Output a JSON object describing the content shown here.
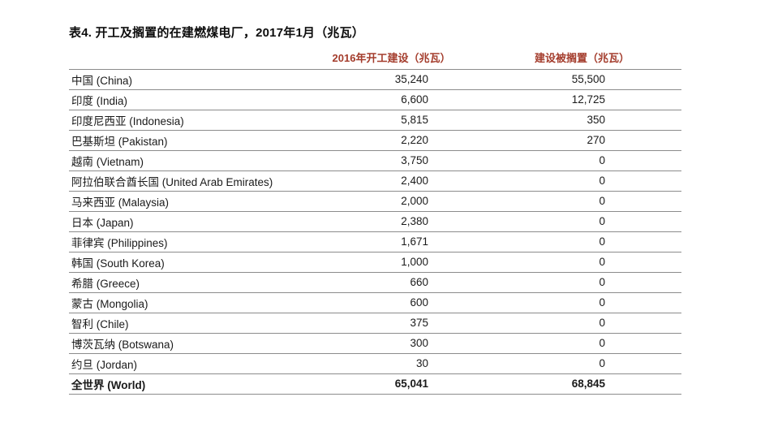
{
  "page": {
    "title": "表4. 开工及搁置的在建燃煤电厂，2017年1月（兆瓦）"
  },
  "colors": {
    "header_text": "#A43D2D",
    "row_border": "#8C8C8C",
    "body_text": "#1A1A1A",
    "background": "#FFFFFF"
  },
  "table": {
    "headers": {
      "country": "",
      "started": "2016年开工建设（兆瓦）",
      "shelved": "建设被搁置（兆瓦）"
    },
    "rows": [
      {
        "country": "中国 (China)",
        "started": "35,240",
        "shelved": "55,500",
        "is_total": false
      },
      {
        "country": "印度 (India)",
        "started": "6,600",
        "shelved": "12,725",
        "is_total": false
      },
      {
        "country": "印度尼西亚 (Indonesia)",
        "started": "5,815",
        "shelved": "350",
        "is_total": false
      },
      {
        "country": "巴基斯坦 (Pakistan)",
        "started": "2,220",
        "shelved": "270",
        "is_total": false
      },
      {
        "country": "越南 (Vietnam)",
        "started": "3,750",
        "shelved": "0",
        "is_total": false
      },
      {
        "country": "阿拉伯联合酋长国 (United Arab Emirates)",
        "started": "2,400",
        "shelved": "0",
        "is_total": false
      },
      {
        "country": "马来西亚 (Malaysia)",
        "started": "2,000",
        "shelved": "0",
        "is_total": false
      },
      {
        "country": "日本 (Japan)",
        "started": "2,380",
        "shelved": "0",
        "is_total": false
      },
      {
        "country": "菲律宾 (Philippines)",
        "started": "1,671",
        "shelved": "0",
        "is_total": false
      },
      {
        "country": "韩国 (South Korea)",
        "started": "1,000",
        "shelved": "0",
        "is_total": false
      },
      {
        "country": "希腊 (Greece)",
        "started": "660",
        "shelved": "0",
        "is_total": false
      },
      {
        "country": "蒙古 (Mongolia)",
        "started": "600",
        "shelved": "0",
        "is_total": false
      },
      {
        "country": "智利 (Chile)",
        "started": "375",
        "shelved": "0",
        "is_total": false
      },
      {
        "country": "博茨瓦纳 (Botswana)",
        "started": "300",
        "shelved": "0",
        "is_total": false
      },
      {
        "country": "约旦 (Jordan)",
        "started": "30",
        "shelved": "0",
        "is_total": false
      },
      {
        "country": "全世界 (World)",
        "started": "65,041",
        "shelved": "68,845",
        "is_total": true
      }
    ]
  }
}
